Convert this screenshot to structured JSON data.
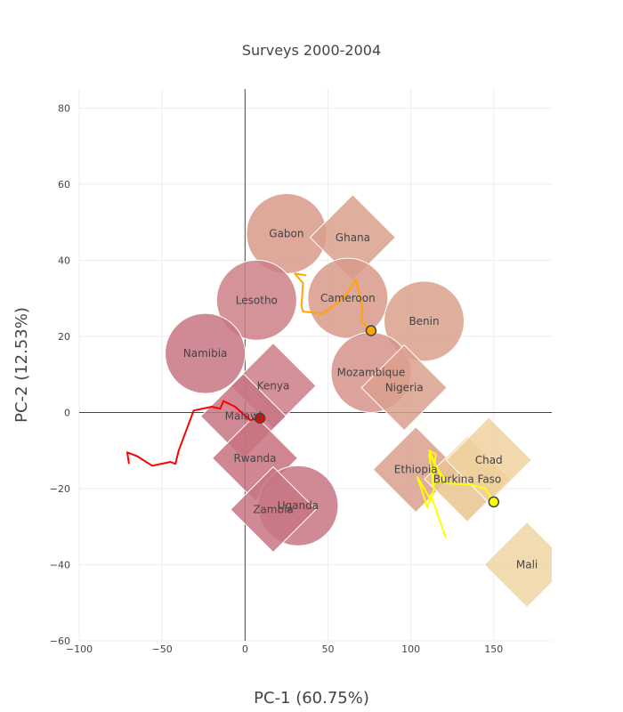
{
  "chart_data": {
    "type": "scatter",
    "title": "Surveys 2000-2004",
    "xlabel": "PC-1 (60.75%)",
    "ylabel": "PC-2 (12.53%)",
    "xlim": [
      -100,
      185
    ],
    "ylim": [
      -60,
      85
    ],
    "x_ticks": [
      -100,
      -50,
      0,
      50,
      100,
      150
    ],
    "y_ticks": [
      -60,
      -40,
      -20,
      0,
      20,
      40,
      60,
      80
    ],
    "x_tick_labels": [
      "−100",
      "−50",
      "0",
      "50",
      "100",
      "150"
    ],
    "y_tick_labels": [
      "−60",
      "−40",
      "−20",
      "0",
      "20",
      "40",
      "60",
      "80"
    ],
    "grid": true,
    "points": [
      {
        "label": "Gabon",
        "x": 25,
        "y": 47,
        "shape": "circle",
        "color": "#d8998a"
      },
      {
        "label": "Ghana",
        "x": 65,
        "y": 46,
        "shape": "diamond",
        "color": "#daa08b"
      },
      {
        "label": "Lesotho",
        "x": 7,
        "y": 29.5,
        "shape": "circle",
        "color": "#cc7f87"
      },
      {
        "label": "Cameroon",
        "x": 62,
        "y": 30,
        "shape": "circle",
        "color": "#d8998a"
      },
      {
        "label": "Benin",
        "x": 108,
        "y": 24,
        "shape": "circle",
        "color": "#daa08b"
      },
      {
        "label": "Namibia",
        "x": -24,
        "y": 15.5,
        "shape": "circle",
        "color": "#c87683"
      },
      {
        "label": "Mozambique",
        "x": 76,
        "y": 10.5,
        "shape": "circle",
        "color": "#d5938a"
      },
      {
        "label": "Nigeria",
        "x": 96,
        "y": 6.5,
        "shape": "diamond",
        "color": "#dba08d"
      },
      {
        "label": "Kenya",
        "x": 17,
        "y": 7,
        "shape": "diamond",
        "color": "#cc7e88"
      },
      {
        "label": "Malawi",
        "x": -1,
        "y": -1,
        "shape": "diamond",
        "color": "#c87683"
      },
      {
        "label": "Rwanda",
        "x": 6,
        "y": -12,
        "shape": "diamond",
        "color": "#c8727f"
      },
      {
        "label": "Uganda",
        "x": 32,
        "y": -24.5,
        "shape": "circle",
        "color": "#c87683"
      },
      {
        "label": "Zambia",
        "x": 17,
        "y": -25.5,
        "shape": "diamond",
        "color": "#c87683"
      },
      {
        "label": "Ethiopia",
        "x": 103,
        "y": -15,
        "shape": "diamond",
        "color": "#dba08d"
      },
      {
        "label": "Burkina Faso",
        "x": 134,
        "y": -17.5,
        "shape": "diamond",
        "color": "#e8c48f"
      },
      {
        "label": "Chad",
        "x": 147,
        "y": -12.5,
        "shape": "diamond",
        "color": "#eed19f"
      },
      {
        "label": "Mali",
        "x": 170,
        "y": -40,
        "shape": "diamond",
        "color": "#f0d5a3"
      }
    ],
    "trails": [
      {
        "color": "#ff0000",
        "end_marker": "#ff0000",
        "points": [
          [
            -70,
            -13.5
          ],
          [
            -71,
            -10.5
          ],
          [
            -65,
            -11.5
          ],
          [
            -56,
            -14
          ],
          [
            -45,
            -13
          ],
          [
            -42,
            -13.5
          ],
          [
            -40,
            -10
          ],
          [
            -31,
            0.5
          ],
          [
            -20,
            1.5
          ],
          [
            -15,
            1
          ],
          [
            -13,
            3
          ],
          [
            -6,
            1.5
          ],
          [
            3,
            -2
          ],
          [
            9,
            -1.5
          ]
        ]
      },
      {
        "color": "#ffa500",
        "end_marker": "#ffa500",
        "points": [
          [
            37,
            36
          ],
          [
            30,
            36.5
          ],
          [
            35,
            34
          ],
          [
            34,
            28
          ],
          [
            35,
            26.5
          ],
          [
            47,
            26
          ],
          [
            55,
            28.5
          ],
          [
            62,
            31.5
          ],
          [
            67,
            35
          ],
          [
            71,
            26.5
          ],
          [
            70,
            24
          ],
          [
            76,
            21.5
          ]
        ]
      },
      {
        "color": "#ffff00",
        "end_marker": "#ffff00",
        "points": [
          [
            121,
            -33
          ],
          [
            112,
            -21.5
          ],
          [
            110,
            -25
          ],
          [
            104,
            -17
          ],
          [
            112,
            -23
          ],
          [
            114,
            -20
          ],
          [
            111,
            -11
          ],
          [
            120,
            -17.5
          ],
          [
            113,
            -19
          ],
          [
            115,
            -11
          ],
          [
            111,
            -10
          ],
          [
            120,
            -18.5
          ],
          [
            136,
            -19
          ],
          [
            145,
            -20
          ],
          [
            150,
            -23.5
          ]
        ]
      }
    ]
  }
}
